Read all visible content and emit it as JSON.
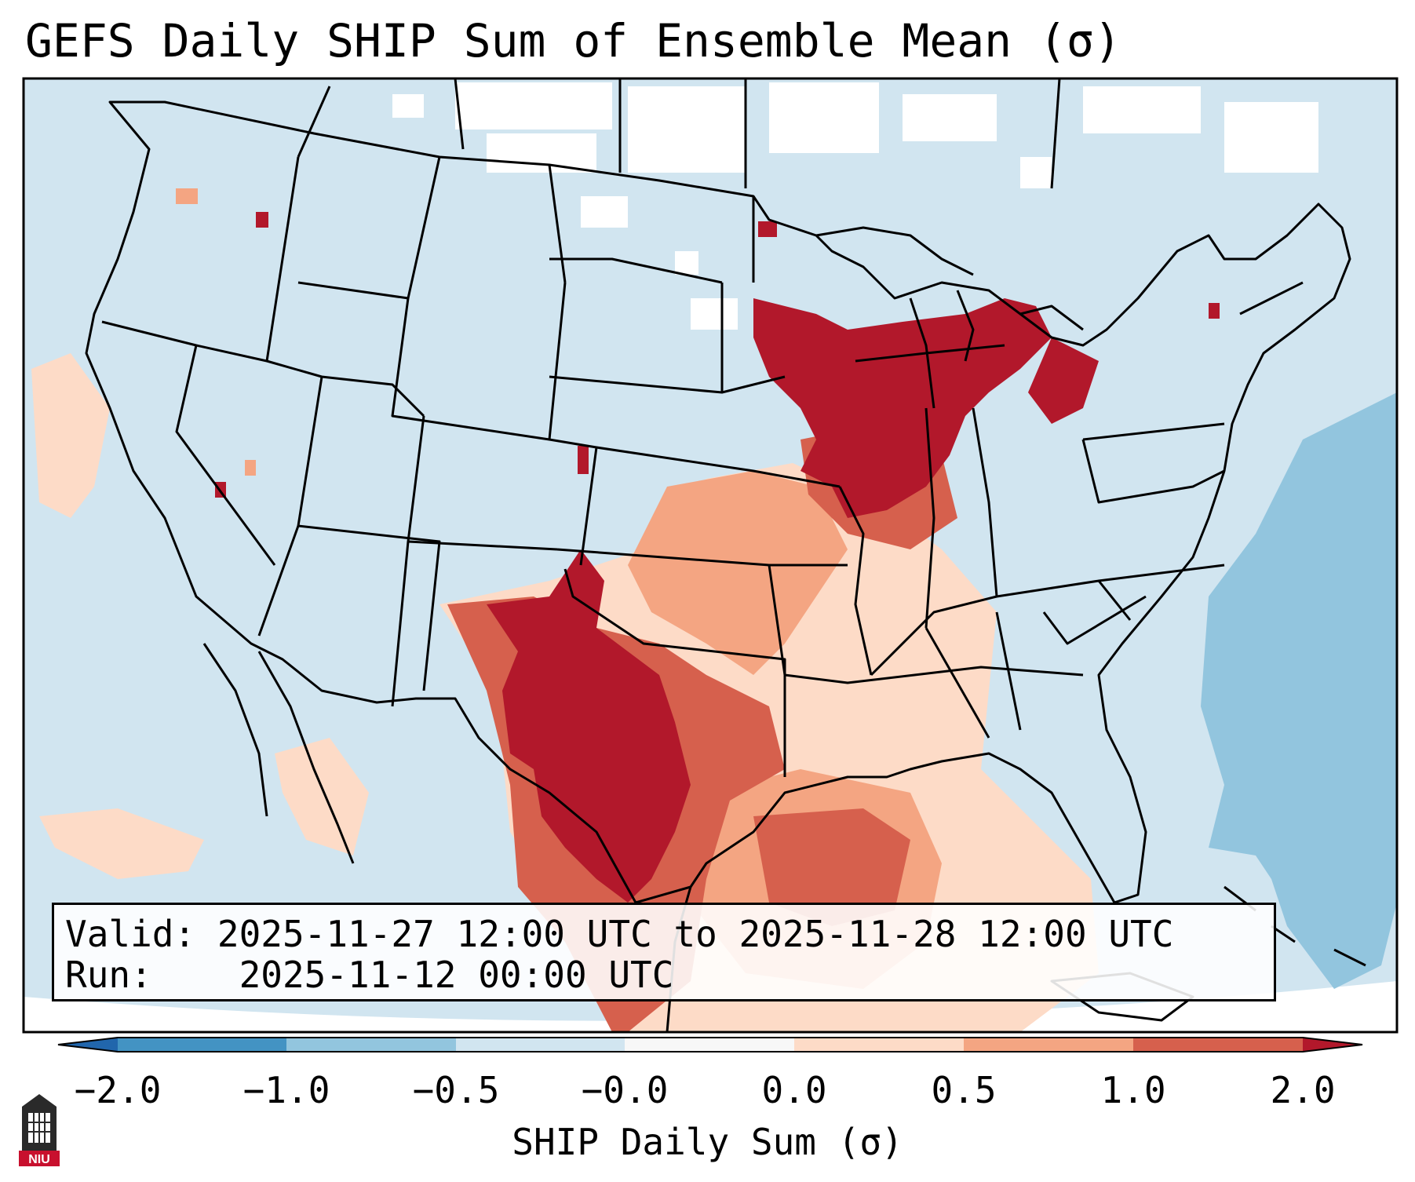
{
  "title": "GEFS Daily SHIP Sum of Ensemble Mean (σ)",
  "info": {
    "valid_label": "Valid:",
    "valid_value": "2025-11-27 12:00 UTC to 2025-11-28 12:00 UTC",
    "run_label": "Run:",
    "run_value": "2025-11-12 00:00 UTC"
  },
  "colorbar": {
    "label": "SHIP Daily Sum (σ)",
    "ticks": [
      "−2.0",
      "−1.0",
      "−0.5",
      "−0.0",
      "0.0",
      "0.5",
      "1.0",
      "2.0"
    ],
    "colors": [
      "#4393c3",
      "#92c5de",
      "#d1e5f0",
      "#f7f7f7",
      "#fddbc7",
      "#f4a582",
      "#d6604d"
    ],
    "extend_low_color": "#2166ac",
    "extend_high_color": "#b2182b"
  },
  "map_colors": {
    "background": "#d1e5f0",
    "ocean_negative": "#92c5de",
    "white": "#ffffff",
    "light_red": "#fddbc7",
    "mid_red": "#f4a582",
    "red": "#d6604d",
    "dark_red": "#b2182b"
  },
  "logo": {
    "text": "NIU",
    "icon": "niu-tower-icon"
  }
}
